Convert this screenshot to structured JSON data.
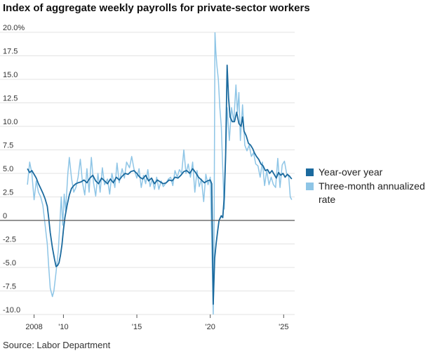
{
  "chart_data": {
    "type": "line",
    "title": "Index of aggregate weekly payrolls for private-sector workers",
    "source": "Source: Labor Department",
    "xlabel": "",
    "ylabel": "",
    "xlim": [
      2007.4,
      2025.75
    ],
    "ylim": [
      -10,
      20
    ],
    "y_ticks": [
      {
        "value": 20,
        "label": "20.0%"
      },
      {
        "value": 17.5,
        "label": "17.5"
      },
      {
        "value": 15,
        "label": "15.0"
      },
      {
        "value": 12.5,
        "label": "12.5"
      },
      {
        "value": 10,
        "label": "10.0"
      },
      {
        "value": 7.5,
        "label": "7.5"
      },
      {
        "value": 5,
        "label": "5.0"
      },
      {
        "value": 2.5,
        "label": "2.5"
      },
      {
        "value": 0,
        "label": "0"
      },
      {
        "value": -2.5,
        "label": "-2.5"
      },
      {
        "value": -5,
        "label": "-5.0"
      },
      {
        "value": -7.5,
        "label": "-7.5"
      },
      {
        "value": -10,
        "label": "-10.0"
      }
    ],
    "x_ticks": [
      {
        "value": 2008,
        "label": "2008"
      },
      {
        "value": 2010,
        "label": "'10"
      },
      {
        "value": 2015,
        "label": "'15"
      },
      {
        "value": 2020,
        "label": "'20"
      },
      {
        "value": 2025,
        "label": "'25"
      }
    ],
    "grid": true,
    "legend_position": "right",
    "series": [
      {
        "name": "Year-over year",
        "color": "#1b6a9e",
        "points": [
          [
            2007.55,
            5.5
          ],
          [
            2007.7,
            5.1
          ],
          [
            2007.85,
            5.3
          ],
          [
            2008.0,
            4.9
          ],
          [
            2008.15,
            4.5
          ],
          [
            2008.3,
            3.9
          ],
          [
            2008.45,
            3.4
          ],
          [
            2008.6,
            2.9
          ],
          [
            2008.75,
            2.3
          ],
          [
            2008.9,
            1.5
          ],
          [
            2009.0,
            0.2
          ],
          [
            2009.1,
            -1.3
          ],
          [
            2009.25,
            -2.9
          ],
          [
            2009.4,
            -4.2
          ],
          [
            2009.5,
            -4.9
          ],
          [
            2009.6,
            -4.8
          ],
          [
            2009.7,
            -4.5
          ],
          [
            2009.8,
            -3.7
          ],
          [
            2009.9,
            -2.6
          ],
          [
            2010.0,
            -1.0
          ],
          [
            2010.1,
            0.3
          ],
          [
            2010.25,
            1.6
          ],
          [
            2010.4,
            2.7
          ],
          [
            2010.55,
            3.4
          ],
          [
            2010.7,
            3.7
          ],
          [
            2010.85,
            3.9
          ],
          [
            2011.0,
            4.0
          ],
          [
            2011.2,
            4.1
          ],
          [
            2011.4,
            4.3
          ],
          [
            2011.6,
            4.0
          ],
          [
            2011.8,
            4.5
          ],
          [
            2012.0,
            4.8
          ],
          [
            2012.2,
            4.2
          ],
          [
            2012.4,
            3.9
          ],
          [
            2012.6,
            4.5
          ],
          [
            2012.8,
            4.2
          ],
          [
            2013.0,
            3.9
          ],
          [
            2013.2,
            4.4
          ],
          [
            2013.4,
            4.0
          ],
          [
            2013.6,
            4.6
          ],
          [
            2013.8,
            4.3
          ],
          [
            2014.0,
            4.7
          ],
          [
            2014.2,
            5.0
          ],
          [
            2014.4,
            4.9
          ],
          [
            2014.6,
            5.2
          ],
          [
            2014.8,
            5.3
          ],
          [
            2015.0,
            5.0
          ],
          [
            2015.2,
            4.6
          ],
          [
            2015.4,
            4.4
          ],
          [
            2015.6,
            4.8
          ],
          [
            2015.8,
            4.2
          ],
          [
            2016.0,
            4.5
          ],
          [
            2016.2,
            3.9
          ],
          [
            2016.4,
            4.3
          ],
          [
            2016.6,
            4.1
          ],
          [
            2016.8,
            3.9
          ],
          [
            2017.0,
            4.0
          ],
          [
            2017.2,
            4.3
          ],
          [
            2017.4,
            4.2
          ],
          [
            2017.6,
            4.6
          ],
          [
            2017.8,
            4.5
          ],
          [
            2018.0,
            4.8
          ],
          [
            2018.2,
            5.2
          ],
          [
            2018.4,
            5.3
          ],
          [
            2018.6,
            5.0
          ],
          [
            2018.8,
            5.5
          ],
          [
            2019.0,
            5.1
          ],
          [
            2019.2,
            4.6
          ],
          [
            2019.4,
            4.3
          ],
          [
            2019.6,
            4.0
          ],
          [
            2019.8,
            4.2
          ],
          [
            2020.0,
            4.3
          ],
          [
            2020.1,
            3.9
          ],
          [
            2020.2,
            -8.9
          ],
          [
            2020.3,
            -4.0
          ],
          [
            2020.4,
            -2.5
          ],
          [
            2020.5,
            -1.2
          ],
          [
            2020.6,
            0.0
          ],
          [
            2020.75,
            0.5
          ],
          [
            2020.85,
            0.3
          ],
          [
            2020.95,
            2.5
          ],
          [
            2021.05,
            7.0
          ],
          [
            2021.15,
            16.5
          ],
          [
            2021.25,
            13.0
          ],
          [
            2021.35,
            11.0
          ],
          [
            2021.5,
            10.5
          ],
          [
            2021.65,
            10.5
          ],
          [
            2021.8,
            11.5
          ],
          [
            2021.95,
            10.3
          ],
          [
            2022.1,
            10.0
          ],
          [
            2022.2,
            11.0
          ],
          [
            2022.3,
            9.5
          ],
          [
            2022.45,
            9.0
          ],
          [
            2022.6,
            8.2
          ],
          [
            2022.75,
            8.0
          ],
          [
            2022.9,
            7.6
          ],
          [
            2023.0,
            7.2
          ],
          [
            2023.15,
            6.8
          ],
          [
            2023.3,
            6.5
          ],
          [
            2023.45,
            6.0
          ],
          [
            2023.6,
            5.8
          ],
          [
            2023.75,
            5.3
          ],
          [
            2023.9,
            5.4
          ],
          [
            2024.05,
            5.0
          ],
          [
            2024.2,
            5.3
          ],
          [
            2024.35,
            4.9
          ],
          [
            2024.5,
            4.5
          ],
          [
            2024.65,
            5.1
          ],
          [
            2024.8,
            4.8
          ],
          [
            2024.95,
            5.0
          ],
          [
            2025.1,
            4.6
          ],
          [
            2025.25,
            4.9
          ],
          [
            2025.4,
            4.7
          ],
          [
            2025.55,
            4.4
          ]
        ]
      },
      {
        "name": "Three-month annualized rate",
        "color": "#8ec5e6",
        "points": [
          [
            2007.55,
            3.8
          ],
          [
            2007.7,
            6.2
          ],
          [
            2007.85,
            5.0
          ],
          [
            2008.0,
            2.2
          ],
          [
            2008.15,
            4.2
          ],
          [
            2008.3,
            3.0
          ],
          [
            2008.45,
            2.5
          ],
          [
            2008.6,
            1.6
          ],
          [
            2008.75,
            -0.5
          ],
          [
            2008.9,
            -2.5
          ],
          [
            2009.0,
            -5.0
          ],
          [
            2009.1,
            -7.2
          ],
          [
            2009.25,
            -8.1
          ],
          [
            2009.35,
            -7.5
          ],
          [
            2009.5,
            -5.5
          ],
          [
            2009.65,
            -3.2
          ],
          [
            2009.75,
            -0.5
          ],
          [
            2009.85,
            2.5
          ],
          [
            2009.95,
            -0.5
          ],
          [
            2010.05,
            2.8
          ],
          [
            2010.15,
            1.0
          ],
          [
            2010.3,
            5.0
          ],
          [
            2010.4,
            6.7
          ],
          [
            2010.55,
            4.5
          ],
          [
            2010.7,
            3.0
          ],
          [
            2010.85,
            3.5
          ],
          [
            2011.0,
            4.6
          ],
          [
            2011.15,
            6.5
          ],
          [
            2011.3,
            4.0
          ],
          [
            2011.45,
            2.7
          ],
          [
            2011.6,
            5.5
          ],
          [
            2011.75,
            3.0
          ],
          [
            2011.9,
            6.7
          ],
          [
            2012.05,
            4.0
          ],
          [
            2012.2,
            2.6
          ],
          [
            2012.35,
            5.0
          ],
          [
            2012.5,
            3.0
          ],
          [
            2012.65,
            5.6
          ],
          [
            2012.8,
            3.8
          ],
          [
            2013.0,
            4.4
          ],
          [
            2013.15,
            2.8
          ],
          [
            2013.3,
            5.0
          ],
          [
            2013.5,
            3.5
          ],
          [
            2013.65,
            6.1
          ],
          [
            2013.8,
            4.0
          ],
          [
            2014.0,
            5.5
          ],
          [
            2014.15,
            4.5
          ],
          [
            2014.3,
            6.2
          ],
          [
            2014.5,
            5.6
          ],
          [
            2014.65,
            6.8
          ],
          [
            2014.8,
            5.5
          ],
          [
            2015.0,
            4.5
          ],
          [
            2015.15,
            5.5
          ],
          [
            2015.3,
            3.5
          ],
          [
            2015.45,
            4.8
          ],
          [
            2015.6,
            3.9
          ],
          [
            2015.75,
            5.4
          ],
          [
            2015.9,
            3.6
          ],
          [
            2016.05,
            4.4
          ],
          [
            2016.2,
            3.3
          ],
          [
            2016.35,
            4.6
          ],
          [
            2016.5,
            3.3
          ],
          [
            2016.65,
            4.2
          ],
          [
            2016.8,
            3.6
          ],
          [
            2017.0,
            4.0
          ],
          [
            2017.15,
            4.4
          ],
          [
            2017.3,
            4.6
          ],
          [
            2017.45,
            3.7
          ],
          [
            2017.6,
            5.3
          ],
          [
            2017.75,
            4.6
          ],
          [
            2017.9,
            5.4
          ],
          [
            2018.05,
            5.0
          ],
          [
            2018.2,
            7.5
          ],
          [
            2018.35,
            5.0
          ],
          [
            2018.5,
            6.0
          ],
          [
            2018.65,
            4.6
          ],
          [
            2018.8,
            6.2
          ],
          [
            2018.95,
            3.0
          ],
          [
            2019.1,
            5.3
          ],
          [
            2019.25,
            3.6
          ],
          [
            2019.4,
            4.4
          ],
          [
            2019.55,
            2.0
          ],
          [
            2019.7,
            4.9
          ],
          [
            2019.85,
            3.8
          ],
          [
            2020.0,
            4.6
          ],
          [
            2020.1,
            -2.0
          ],
          [
            2020.2,
            -10.0
          ],
          [
            2020.25,
            -5.0
          ],
          [
            2020.32,
            20.0
          ],
          [
            2020.38,
            18.0
          ],
          [
            2020.45,
            16.5
          ],
          [
            2020.55,
            15.0
          ],
          [
            2020.65,
            12.0
          ],
          [
            2020.75,
            10.0
          ],
          [
            2020.85,
            5.5
          ],
          [
            2020.95,
            1.2
          ],
          [
            2021.05,
            6.5
          ],
          [
            2021.15,
            12.0
          ],
          [
            2021.3,
            8.5
          ],
          [
            2021.45,
            12.0
          ],
          [
            2021.6,
            10.5
          ],
          [
            2021.75,
            14.4
          ],
          [
            2021.85,
            11.5
          ],
          [
            2021.95,
            13.6
          ],
          [
            2022.05,
            8.5
          ],
          [
            2022.2,
            12.3
          ],
          [
            2022.35,
            8.0
          ],
          [
            2022.5,
            7.4
          ],
          [
            2022.65,
            8.0
          ],
          [
            2022.8,
            6.8
          ],
          [
            2022.95,
            7.2
          ],
          [
            2023.1,
            6.0
          ],
          [
            2023.25,
            5.8
          ],
          [
            2023.4,
            4.6
          ],
          [
            2023.55,
            6.2
          ],
          [
            2023.7,
            3.7
          ],
          [
            2023.85,
            5.3
          ],
          [
            2024.0,
            3.8
          ],
          [
            2024.15,
            4.6
          ],
          [
            2024.3,
            3.8
          ],
          [
            2024.45,
            3.5
          ],
          [
            2024.6,
            6.6
          ],
          [
            2024.75,
            3.5
          ],
          [
            2024.9,
            5.9
          ],
          [
            2025.05,
            6.3
          ],
          [
            2025.2,
            5.0
          ],
          [
            2025.35,
            4.6
          ],
          [
            2025.45,
            2.5
          ],
          [
            2025.55,
            2.2
          ]
        ]
      }
    ]
  }
}
